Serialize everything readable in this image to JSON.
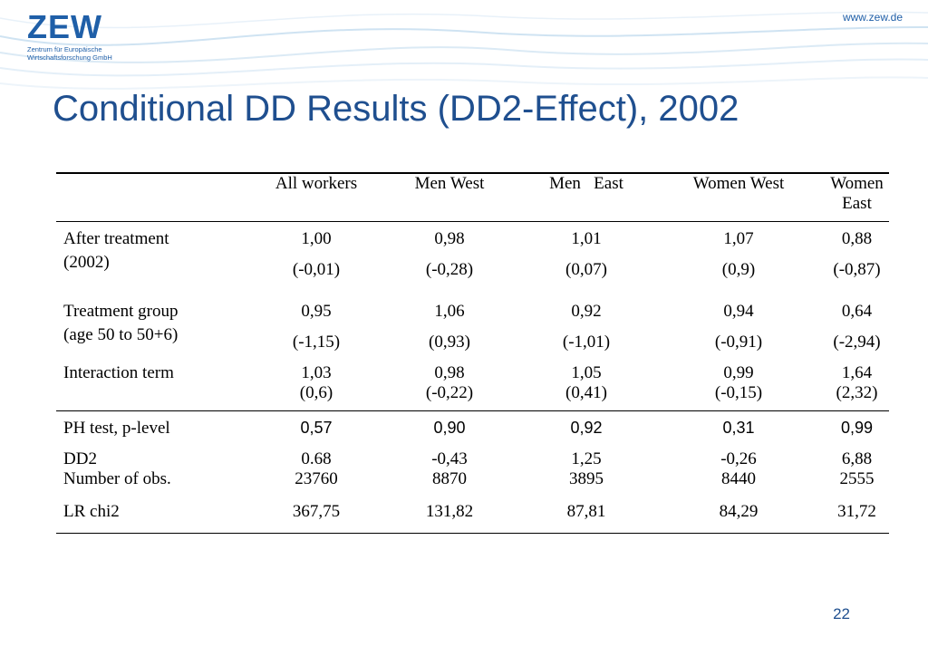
{
  "header": {
    "logo_text": "ZEW",
    "logo_sub_1": "Zentrum für Europäische",
    "logo_sub_2": "Wirtschaftsforschung GmbH",
    "url": "www.zew.de"
  },
  "title": "Conditional DD Results (DD2-Effect), 2002",
  "table": {
    "columns": [
      "All workers",
      "Men West",
      "Men   East",
      "Women West",
      "Women East"
    ],
    "after_treatment": {
      "label_1": "After treatment",
      "label_2": "(2002)",
      "values": [
        "1,00",
        "0,98",
        "1,01",
        "1,07",
        "0,88"
      ],
      "t": [
        "(-0,01)",
        "(-0,28)",
        "(0,07)",
        "(0,9)",
        "(-0,87)"
      ]
    },
    "treatment_group": {
      "label_1": "Treatment group",
      "label_2": "(age 50 to 50+6)",
      "values": [
        "0,95",
        "1,06",
        "0,92",
        "0,94",
        "0,64"
      ],
      "t": [
        "(-1,15)",
        "(0,93)",
        "(-1,01)",
        "(-0,91)",
        "(-2,94)"
      ]
    },
    "interaction": {
      "label": "Interaction term",
      "values": [
        "1,03",
        "0,98",
        "1,05",
        "0,99",
        "1,64"
      ],
      "t": [
        "(0,6)",
        "(-0,22)",
        "(0,41)",
        "(-0,15)",
        "(2,32)"
      ]
    },
    "ph_test": {
      "label": "PH test, p-level",
      "values": [
        "0,57",
        "0,90",
        "0,92",
        "0,31",
        "0,99"
      ]
    },
    "dd2": {
      "label": "DD2",
      "values": [
        "0.68",
        "-0,43",
        "1,25",
        "-0,26",
        "6,88"
      ]
    },
    "nobs": {
      "label": "Number of obs.",
      "values": [
        "23760",
        "8870",
        "3895",
        "8440",
        "2555"
      ]
    },
    "lr": {
      "label": "LR chi2",
      "values": [
        "367,75",
        "131,82",
        "87,81",
        "84,29",
        "31,72"
      ]
    }
  },
  "page_number": "22"
}
